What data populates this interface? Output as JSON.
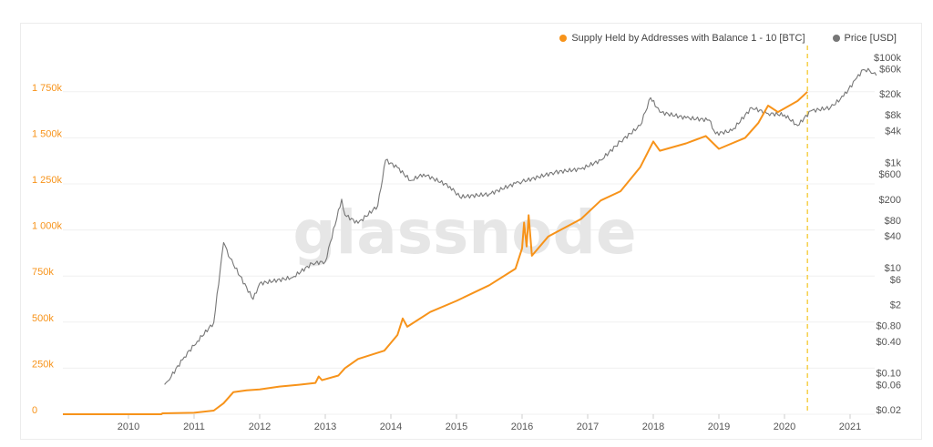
{
  "chart_data": {
    "type": "line",
    "title": "",
    "watermark": "glassnode",
    "legend_position": "top-right",
    "grid": true,
    "x_ticks": [
      "2010",
      "2011",
      "2012",
      "2013",
      "2014",
      "2015",
      "2016",
      "2017",
      "2018",
      "2019",
      "2020",
      "2021"
    ],
    "xlim": [
      2009.0,
      2021.4
    ],
    "left_axis": {
      "scale": "linear",
      "ylim": [
        0,
        1800000
      ],
      "tick_values": [
        0,
        250000,
        500000,
        750000,
        1000000,
        1250000,
        1500000,
        1750000
      ],
      "tick_labels": [
        "0",
        "250k",
        "500k",
        "750k",
        "1 000k",
        "1 250k",
        "1 500k",
        "1 750k"
      ],
      "color": "#f7931a"
    },
    "right_axis": {
      "scale": "log",
      "ylim": [
        0.02,
        100000
      ],
      "tick_values": [
        0.02,
        0.06,
        0.1,
        0.4,
        0.8,
        2,
        6,
        10,
        40,
        80,
        200,
        600,
        1000,
        4000,
        8000,
        20000,
        60000,
        100000
      ],
      "tick_labels": [
        "$0.02",
        "$0.06",
        "$0.10",
        "$0.40",
        "$0.80",
        "$2",
        "$6",
        "$10",
        "$40",
        "$80",
        "$200",
        "$600",
        "$1k",
        "$4k",
        "$8k",
        "$20k",
        "$60k",
        "$100k"
      ],
      "color": "#555555"
    },
    "marker_line": {
      "x": 2020.35,
      "color": "#f5d04a"
    },
    "series": [
      {
        "name": "Supply Held by Addresses with Balance 1 - 10 [BTC]",
        "axis": "left",
        "color": "#f7931a",
        "x": [
          2009.0,
          2010.5,
          2010.52,
          2011.0,
          2011.3,
          2011.45,
          2011.6,
          2011.8,
          2012.0,
          2012.3,
          2012.6,
          2012.85,
          2012.9,
          2012.95,
          2013.2,
          2013.3,
          2013.5,
          2013.9,
          2014.1,
          2014.18,
          2014.25,
          2014.6,
          2015.0,
          2015.5,
          2015.9,
          2016.0,
          2016.03,
          2016.07,
          2016.1,
          2016.15,
          2016.4,
          2016.9,
          2017.2,
          2017.5,
          2017.8,
          2018.0,
          2018.1,
          2018.5,
          2018.8,
          2019.0,
          2019.4,
          2019.6,
          2019.75,
          2019.9,
          2020.2,
          2020.35
        ],
        "y": [
          0,
          0,
          5000,
          8000,
          20000,
          60000,
          120000,
          130000,
          135000,
          150000,
          160000,
          170000,
          205000,
          185000,
          210000,
          250000,
          300000,
          345000,
          430000,
          520000,
          475000,
          555000,
          615000,
          700000,
          790000,
          900000,
          1040000,
          910000,
          1080000,
          860000,
          965000,
          1060000,
          1160000,
          1210000,
          1340000,
          1480000,
          1430000,
          1470000,
          1510000,
          1440000,
          1500000,
          1580000,
          1675000,
          1640000,
          1700000,
          1750000
        ]
      },
      {
        "name": "Price [USD]",
        "axis": "right",
        "color": "#777777",
        "x": [
          2010.55,
          2010.6,
          2010.85,
          2011.05,
          2011.3,
          2011.45,
          2011.55,
          2011.9,
          2012.0,
          2012.5,
          2012.8,
          2013.0,
          2013.25,
          2013.3,
          2013.5,
          2013.8,
          2013.92,
          2014.1,
          2014.3,
          2014.5,
          2014.9,
          2015.05,
          2015.5,
          2015.9,
          2016.0,
          2016.5,
          2016.9,
          2017.2,
          2017.5,
          2017.8,
          2017.96,
          2018.1,
          2018.5,
          2018.85,
          2018.95,
          2019.2,
          2019.5,
          2019.75,
          2020.0,
          2020.2,
          2020.4,
          2020.7,
          2020.9,
          2021.1,
          2021.2,
          2021.3,
          2021.4
        ],
        "y": [
          0.06,
          0.07,
          0.2,
          0.4,
          0.9,
          30,
          15,
          2.5,
          5,
          6.5,
          12,
          13,
          200,
          100,
          70,
          150,
          1100,
          800,
          450,
          600,
          350,
          220,
          250,
          400,
          430,
          650,
          750,
          1100,
          2500,
          5000,
          17000,
          9000,
          7000,
          6400,
          3500,
          4000,
          11000,
          8500,
          8000,
          5000,
          9500,
          11000,
          18000,
          40000,
          58000,
          55000,
          45000
        ]
      }
    ]
  },
  "legend": {
    "supply_label": "Supply Held by Addresses with Balance 1 - 10 [BTC]",
    "price_label": "Price [USD]"
  }
}
